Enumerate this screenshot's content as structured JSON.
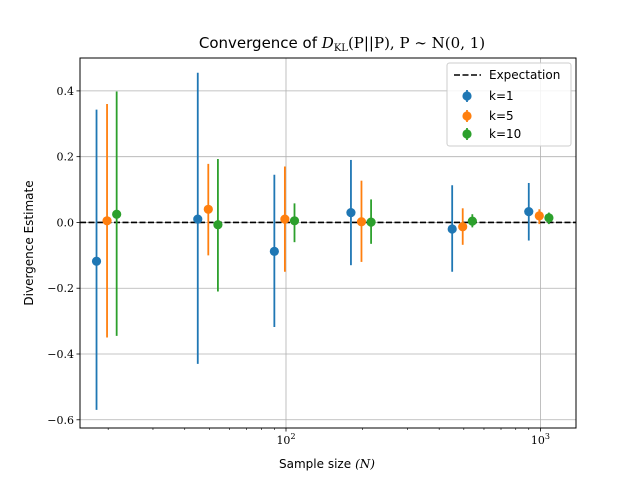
{
  "chart_data": {
    "type": "scatter",
    "title": "Convergence of D̂KL(P||P), P ∼ N(0,1)",
    "title_parts": {
      "prefix": "Convergence of ",
      "hat": "D",
      "sub": "KL",
      "args": "(P||P), P ∼ N(0, 1)"
    },
    "xlabel": "Sample size",
    "xlabel_math": "(N)",
    "ylabel": "Divergence Estimate",
    "xscale": "log",
    "xlim": [
      15.5,
      1380
    ],
    "ylim": [
      -0.625,
      0.5
    ],
    "xticks": [
      {
        "value": 100,
        "base": "10",
        "exp": "2"
      },
      {
        "value": 1000,
        "base": "10",
        "exp": "3"
      }
    ],
    "yticks": [
      {
        "value": -0.6,
        "label": "−0.6"
      },
      {
        "value": -0.4,
        "label": "−0.4"
      },
      {
        "value": -0.2,
        "label": "−0.2"
      },
      {
        "value": 0.0,
        "label": "0.0"
      },
      {
        "value": 0.2,
        "label": "0.2"
      },
      {
        "value": 0.4,
        "label": "0.4"
      }
    ],
    "grid": true,
    "expectation": {
      "name": "Expectation",
      "value": 0.0,
      "style": "dashed",
      "color": "#000000"
    },
    "legend_position": "top-right",
    "series": [
      {
        "name": "k=1",
        "color": "#1f77b4",
        "x": [
          18,
          45,
          90,
          180,
          450,
          900
        ],
        "y": [
          -0.118,
          0.01,
          -0.088,
          0.03,
          -0.02,
          0.033
        ],
        "yerr_low": [
          -0.57,
          -0.43,
          -0.318,
          -0.13,
          -0.15,
          -0.055
        ],
        "yerr_high": [
          0.343,
          0.455,
          0.145,
          0.19,
          0.113,
          0.12
        ]
      },
      {
        "name": "k=5",
        "color": "#ff7f0e",
        "x": [
          19.8,
          49.5,
          99,
          198,
          495,
          990
        ],
        "y": [
          0.005,
          0.04,
          0.01,
          0.002,
          -0.013,
          0.02
        ],
        "yerr_low": [
          -0.35,
          -0.1,
          -0.15,
          -0.12,
          -0.068,
          -0.005
        ],
        "yerr_high": [
          0.36,
          0.178,
          0.17,
          0.127,
          0.043,
          0.04
        ]
      },
      {
        "name": "k=10",
        "color": "#2ca02c",
        "x": [
          21.6,
          54,
          108,
          216,
          540,
          1080
        ],
        "y": [
          0.025,
          -0.007,
          0.005,
          0.001,
          0.004,
          0.014
        ],
        "yerr_low": [
          -0.345,
          -0.21,
          -0.06,
          -0.065,
          -0.015,
          -0.005
        ],
        "yerr_high": [
          0.398,
          0.193,
          0.058,
          0.07,
          0.025,
          0.03
        ]
      }
    ]
  }
}
